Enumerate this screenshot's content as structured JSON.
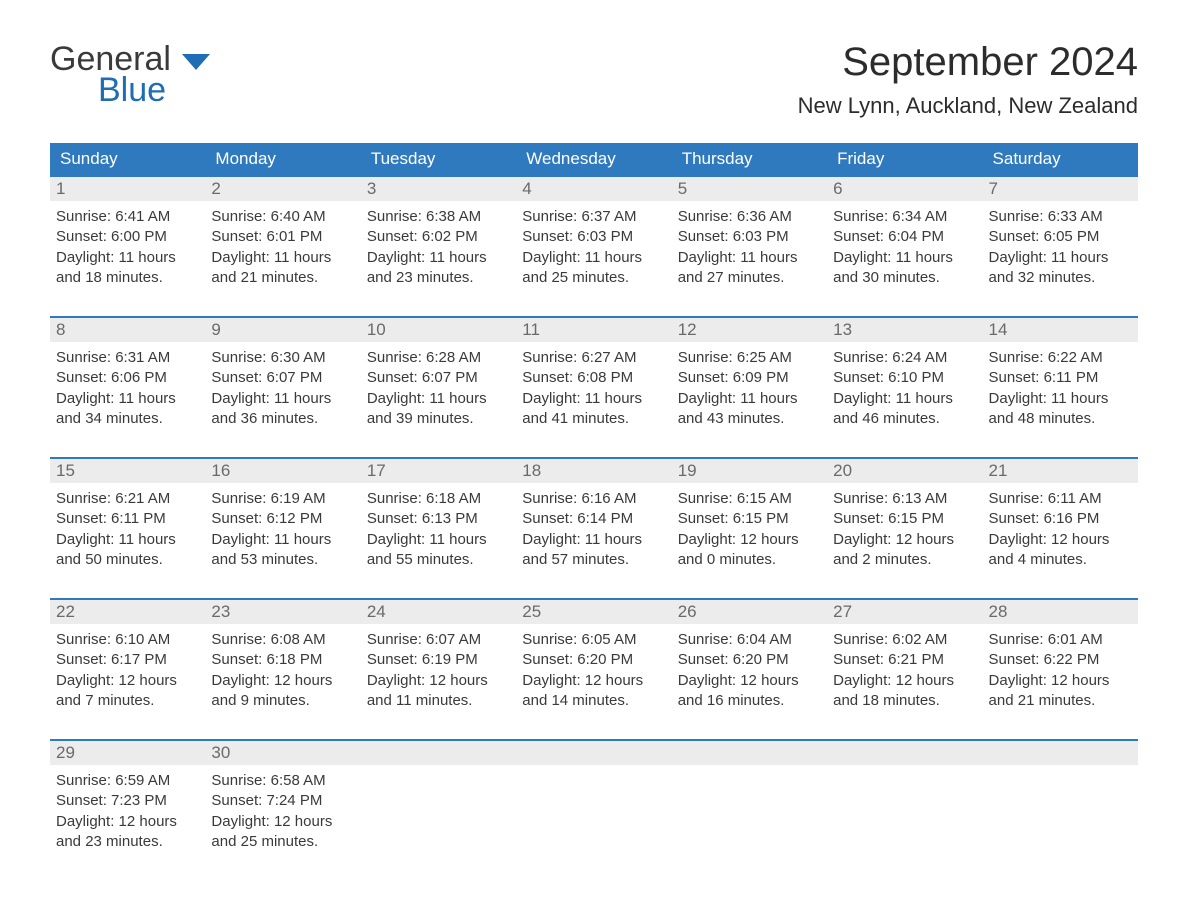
{
  "logo": {
    "text1": "General",
    "text2": "Blue",
    "flag_color": "#1f6db5"
  },
  "title": "September 2024",
  "location": "New Lynn, Auckland, New Zealand",
  "colors": {
    "header_bg": "#2f79bf",
    "header_text": "#ffffff",
    "row_border": "#2f79bf",
    "daynum_bg": "#ececec",
    "daynum_text": "#6a6a6a",
    "body_text": "#3a3a3a",
    "brand_blue": "#1f6db5"
  },
  "day_labels": [
    "Sunday",
    "Monday",
    "Tuesday",
    "Wednesday",
    "Thursday",
    "Friday",
    "Saturday"
  ],
  "weeks": [
    [
      {
        "n": "1",
        "sunrise": "6:41 AM",
        "sunset": "6:00 PM",
        "dl1": "Daylight: 11 hours",
        "dl2": "and 18 minutes."
      },
      {
        "n": "2",
        "sunrise": "6:40 AM",
        "sunset": "6:01 PM",
        "dl1": "Daylight: 11 hours",
        "dl2": "and 21 minutes."
      },
      {
        "n": "3",
        "sunrise": "6:38 AM",
        "sunset": "6:02 PM",
        "dl1": "Daylight: 11 hours",
        "dl2": "and 23 minutes."
      },
      {
        "n": "4",
        "sunrise": "6:37 AM",
        "sunset": "6:03 PM",
        "dl1": "Daylight: 11 hours",
        "dl2": "and 25 minutes."
      },
      {
        "n": "5",
        "sunrise": "6:36 AM",
        "sunset": "6:03 PM",
        "dl1": "Daylight: 11 hours",
        "dl2": "and 27 minutes."
      },
      {
        "n": "6",
        "sunrise": "6:34 AM",
        "sunset": "6:04 PM",
        "dl1": "Daylight: 11 hours",
        "dl2": "and 30 minutes."
      },
      {
        "n": "7",
        "sunrise": "6:33 AM",
        "sunset": "6:05 PM",
        "dl1": "Daylight: 11 hours",
        "dl2": "and 32 minutes."
      }
    ],
    [
      {
        "n": "8",
        "sunrise": "6:31 AM",
        "sunset": "6:06 PM",
        "dl1": "Daylight: 11 hours",
        "dl2": "and 34 minutes."
      },
      {
        "n": "9",
        "sunrise": "6:30 AM",
        "sunset": "6:07 PM",
        "dl1": "Daylight: 11 hours",
        "dl2": "and 36 minutes."
      },
      {
        "n": "10",
        "sunrise": "6:28 AM",
        "sunset": "6:07 PM",
        "dl1": "Daylight: 11 hours",
        "dl2": "and 39 minutes."
      },
      {
        "n": "11",
        "sunrise": "6:27 AM",
        "sunset": "6:08 PM",
        "dl1": "Daylight: 11 hours",
        "dl2": "and 41 minutes."
      },
      {
        "n": "12",
        "sunrise": "6:25 AM",
        "sunset": "6:09 PM",
        "dl1": "Daylight: 11 hours",
        "dl2": "and 43 minutes."
      },
      {
        "n": "13",
        "sunrise": "6:24 AM",
        "sunset": "6:10 PM",
        "dl1": "Daylight: 11 hours",
        "dl2": "and 46 minutes."
      },
      {
        "n": "14",
        "sunrise": "6:22 AM",
        "sunset": "6:11 PM",
        "dl1": "Daylight: 11 hours",
        "dl2": "and 48 minutes."
      }
    ],
    [
      {
        "n": "15",
        "sunrise": "6:21 AM",
        "sunset": "6:11 PM",
        "dl1": "Daylight: 11 hours",
        "dl2": "and 50 minutes."
      },
      {
        "n": "16",
        "sunrise": "6:19 AM",
        "sunset": "6:12 PM",
        "dl1": "Daylight: 11 hours",
        "dl2": "and 53 minutes."
      },
      {
        "n": "17",
        "sunrise": "6:18 AM",
        "sunset": "6:13 PM",
        "dl1": "Daylight: 11 hours",
        "dl2": "and 55 minutes."
      },
      {
        "n": "18",
        "sunrise": "6:16 AM",
        "sunset": "6:14 PM",
        "dl1": "Daylight: 11 hours",
        "dl2": "and 57 minutes."
      },
      {
        "n": "19",
        "sunrise": "6:15 AM",
        "sunset": "6:15 PM",
        "dl1": "Daylight: 12 hours",
        "dl2": "and 0 minutes."
      },
      {
        "n": "20",
        "sunrise": "6:13 AM",
        "sunset": "6:15 PM",
        "dl1": "Daylight: 12 hours",
        "dl2": "and 2 minutes."
      },
      {
        "n": "21",
        "sunrise": "6:11 AM",
        "sunset": "6:16 PM",
        "dl1": "Daylight: 12 hours",
        "dl2": "and 4 minutes."
      }
    ],
    [
      {
        "n": "22",
        "sunrise": "6:10 AM",
        "sunset": "6:17 PM",
        "dl1": "Daylight: 12 hours",
        "dl2": "and 7 minutes."
      },
      {
        "n": "23",
        "sunrise": "6:08 AM",
        "sunset": "6:18 PM",
        "dl1": "Daylight: 12 hours",
        "dl2": "and 9 minutes."
      },
      {
        "n": "24",
        "sunrise": "6:07 AM",
        "sunset": "6:19 PM",
        "dl1": "Daylight: 12 hours",
        "dl2": "and 11 minutes."
      },
      {
        "n": "25",
        "sunrise": "6:05 AM",
        "sunset": "6:20 PM",
        "dl1": "Daylight: 12 hours",
        "dl2": "and 14 minutes."
      },
      {
        "n": "26",
        "sunrise": "6:04 AM",
        "sunset": "6:20 PM",
        "dl1": "Daylight: 12 hours",
        "dl2": "and 16 minutes."
      },
      {
        "n": "27",
        "sunrise": "6:02 AM",
        "sunset": "6:21 PM",
        "dl1": "Daylight: 12 hours",
        "dl2": "and 18 minutes."
      },
      {
        "n": "28",
        "sunrise": "6:01 AM",
        "sunset": "6:22 PM",
        "dl1": "Daylight: 12 hours",
        "dl2": "and 21 minutes."
      }
    ],
    [
      {
        "n": "29",
        "sunrise": "6:59 AM",
        "sunset": "7:23 PM",
        "dl1": "Daylight: 12 hours",
        "dl2": "and 23 minutes."
      },
      {
        "n": "30",
        "sunrise": "6:58 AM",
        "sunset": "7:24 PM",
        "dl1": "Daylight: 12 hours",
        "dl2": "and 25 minutes."
      },
      {
        "empty": true
      },
      {
        "empty": true
      },
      {
        "empty": true
      },
      {
        "empty": true
      },
      {
        "empty": true
      }
    ]
  ],
  "labels": {
    "sunrise_prefix": "Sunrise: ",
    "sunset_prefix": "Sunset: "
  }
}
